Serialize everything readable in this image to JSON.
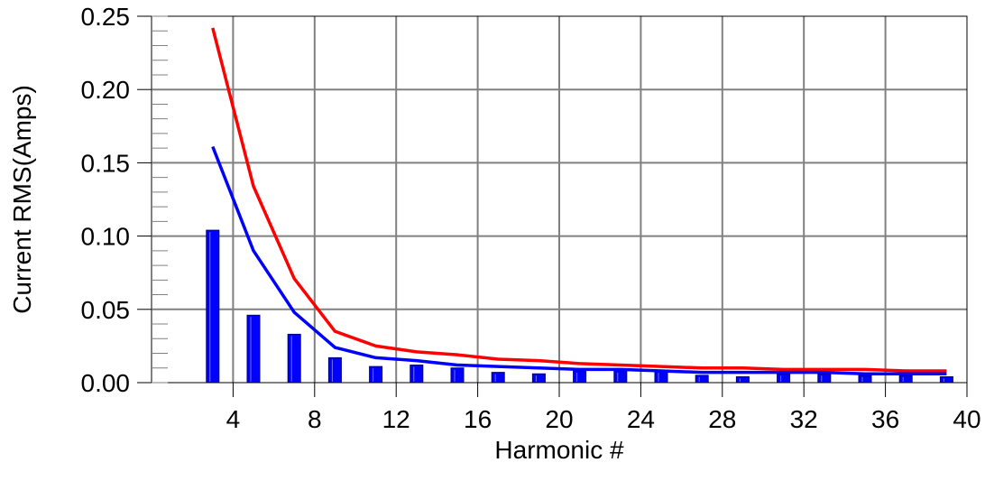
{
  "chart_data": {
    "type": "bar",
    "title": "",
    "xlabel": "Harmonic #",
    "ylabel": "Current RMS(Amps)",
    "xlim": [
      0,
      40
    ],
    "ylim": [
      0,
      0.25
    ],
    "x_ticks": [
      4,
      8,
      12,
      16,
      20,
      24,
      28,
      32,
      36,
      40
    ],
    "x_tick_labels": [
      "4",
      "8",
      "12",
      "16",
      "20",
      "24",
      "28",
      "32",
      "36",
      "40"
    ],
    "y_ticks": [
      0,
      0.05,
      0.1,
      0.15,
      0.2,
      0.25
    ],
    "y_tick_labels": [
      "0.00",
      "0.05",
      "0.10",
      "0.15",
      "0.20",
      "0.25"
    ],
    "grid": true,
    "legend": "none",
    "x": [
      3,
      5,
      7,
      9,
      11,
      13,
      15,
      17,
      19,
      21,
      23,
      25,
      27,
      29,
      31,
      33,
      35,
      37,
      39
    ],
    "series": [
      {
        "kind": "bar",
        "color": "#0000ff",
        "values": [
          0.104,
          0.046,
          0.033,
          0.017,
          0.011,
          0.012,
          0.01,
          0.007,
          0.006,
          0.008,
          0.008,
          0.008,
          0.005,
          0.004,
          0.006,
          0.006,
          0.005,
          0.005,
          0.004
        ]
      },
      {
        "kind": "line",
        "color": "#ff0000",
        "values": [
          0.242,
          0.134,
          0.071,
          0.035,
          0.025,
          0.021,
          0.019,
          0.016,
          0.015,
          0.013,
          0.012,
          0.011,
          0.01,
          0.01,
          0.009,
          0.009,
          0.009,
          0.008,
          0.008
        ]
      },
      {
        "kind": "line",
        "color": "#0000ff",
        "values": [
          0.161,
          0.09,
          0.048,
          0.024,
          0.017,
          0.015,
          0.012,
          0.011,
          0.01,
          0.009,
          0.009,
          0.008,
          0.007,
          0.007,
          0.007,
          0.007,
          0.006,
          0.006,
          0.006
        ]
      }
    ]
  }
}
